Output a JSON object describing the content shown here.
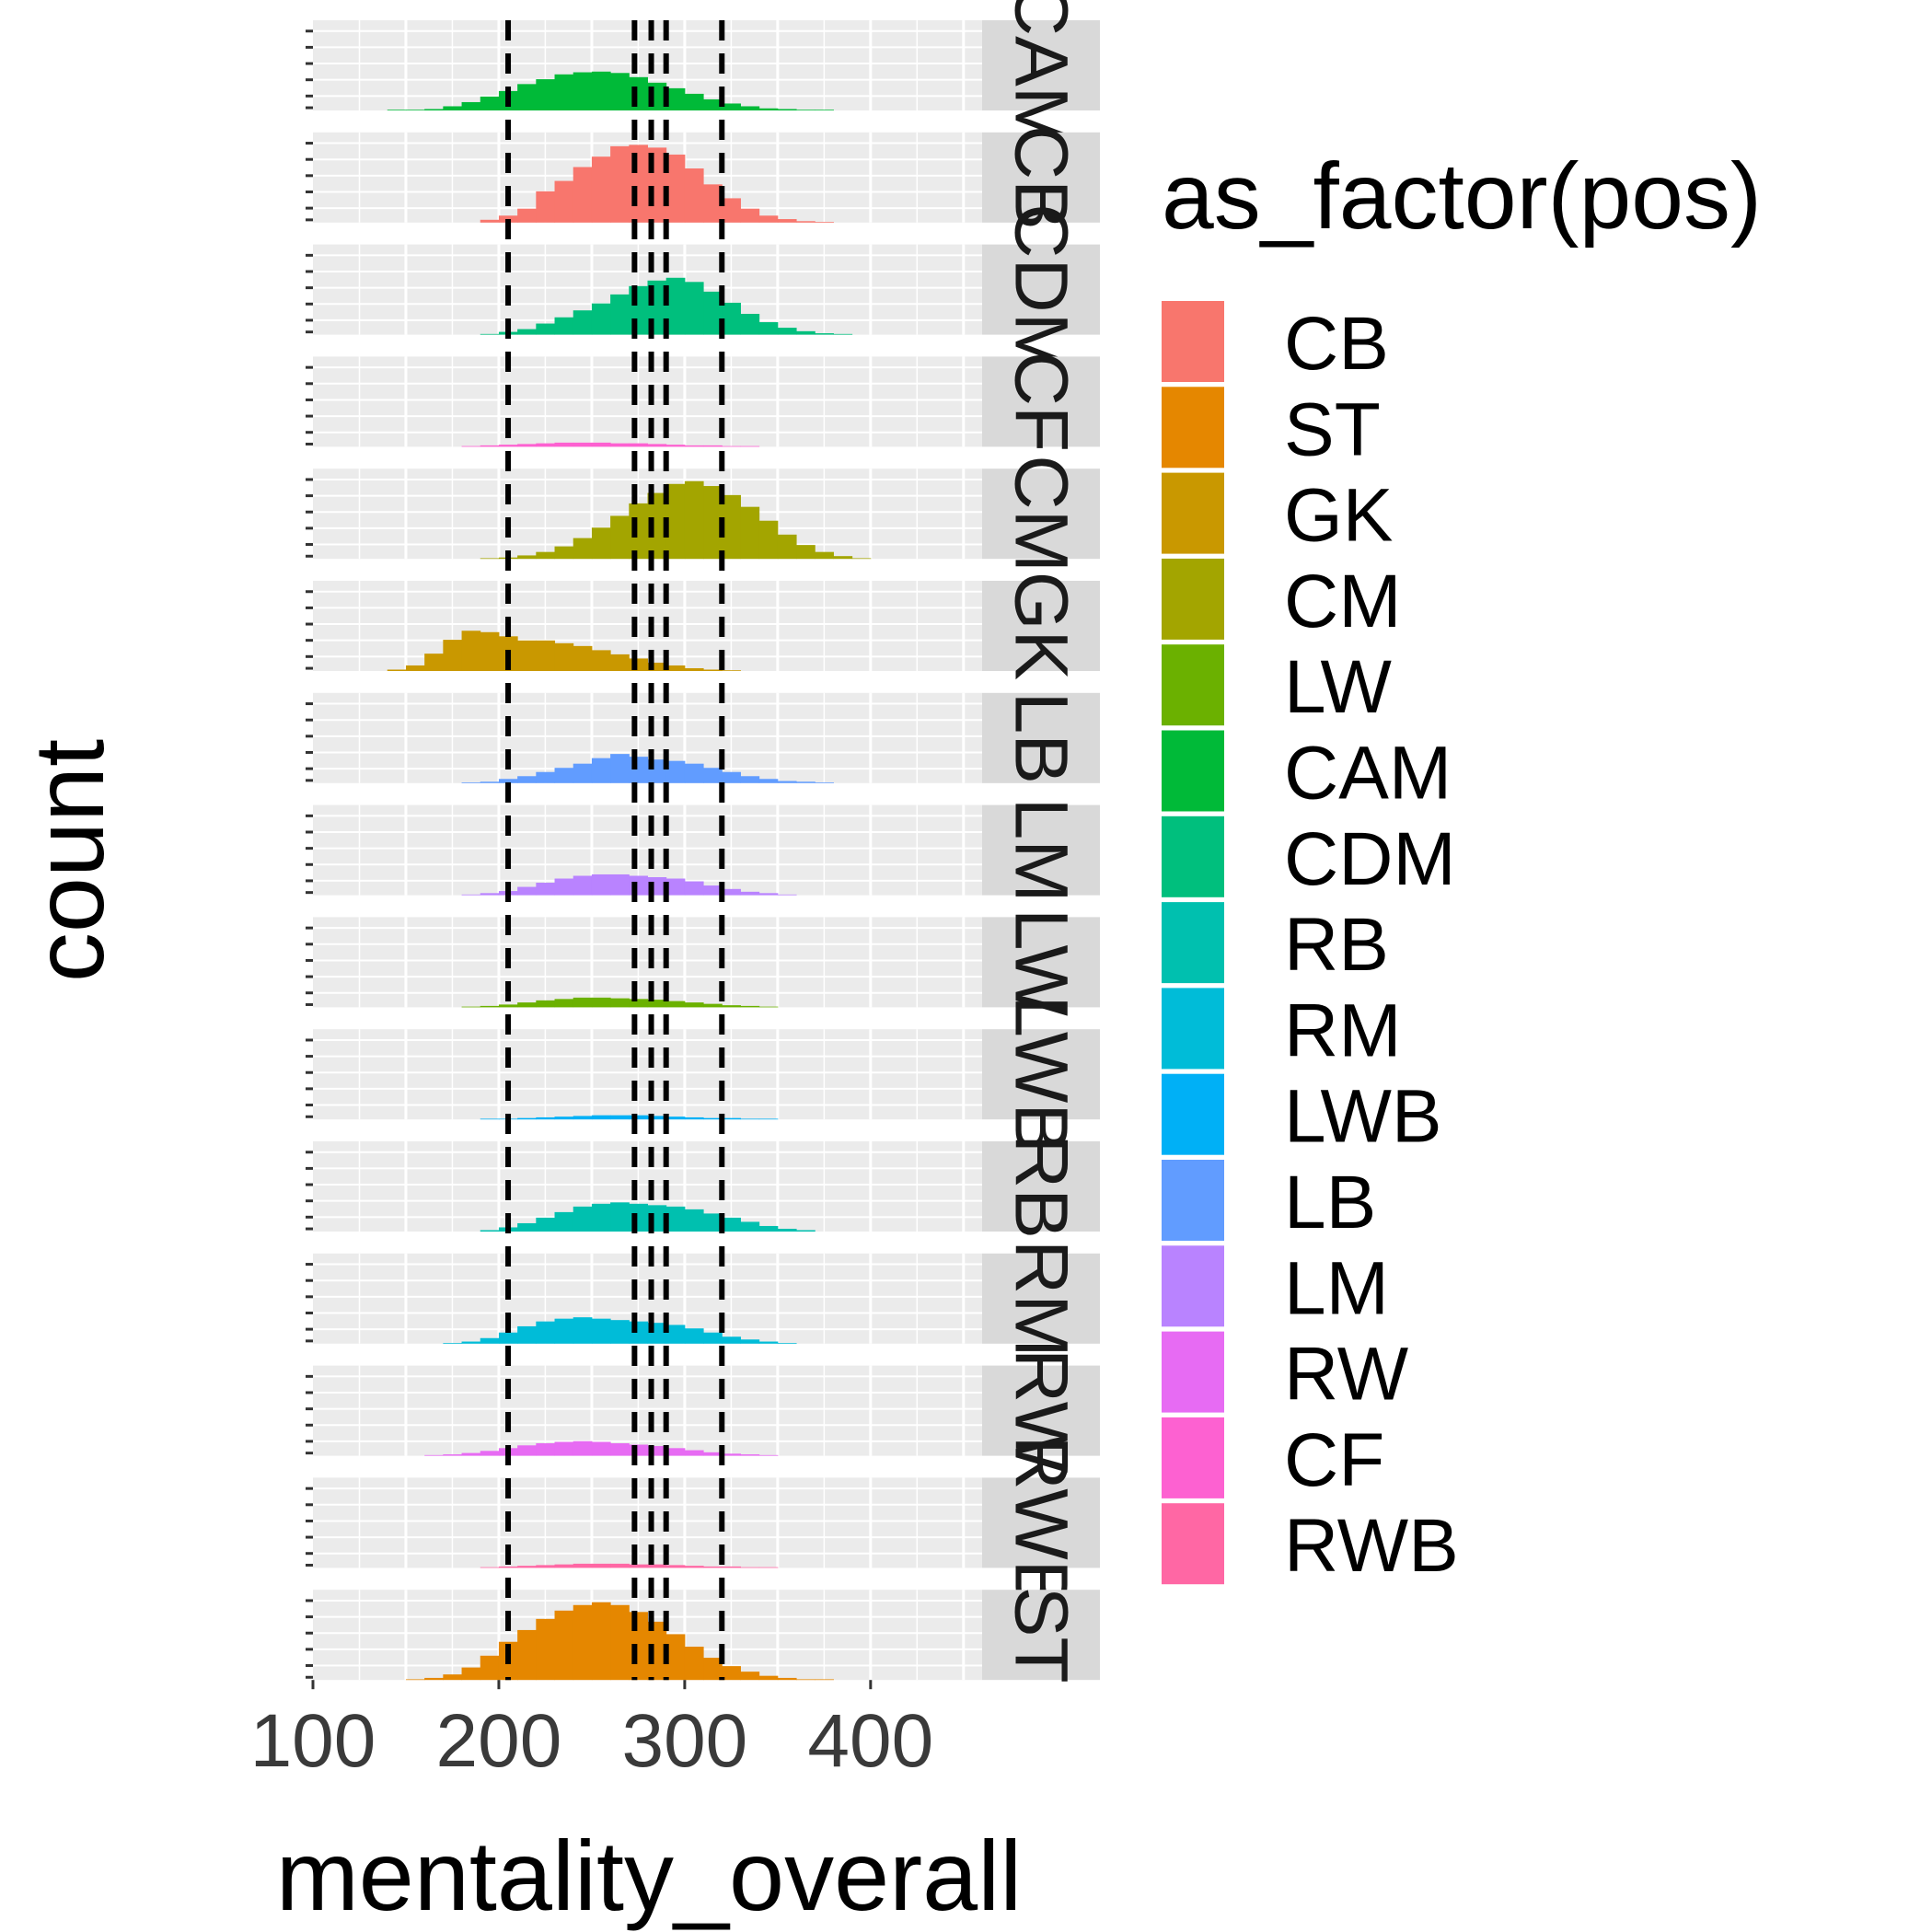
{
  "chart_data": {
    "type": "bar",
    "subtype": "faceted-histogram",
    "xlabel": "mentality_overall",
    "ylabel": "count",
    "x_ticks": [
      100,
      200,
      300,
      400
    ],
    "xlim": [
      100,
      460
    ],
    "ylim": [
      0,
      130
    ],
    "grid": true,
    "legend": {
      "title": "as_factor(pos)",
      "position": "right",
      "entries": [
        "CB",
        "ST",
        "GK",
        "CM",
        "LW",
        "CAM",
        "CDM",
        "RB",
        "RM",
        "LWB",
        "LB",
        "LM",
        "RW",
        "CF",
        "RWB"
      ]
    },
    "colors": {
      "CB": "#F8766D",
      "ST": "#E58700",
      "GK": "#C99800",
      "CM": "#A3A500",
      "LW": "#6BB100",
      "CAM": "#00BA38",
      "CDM": "#00BF7D",
      "RB": "#00C0AF",
      "RM": "#00BCD8",
      "LWB": "#00B0F6",
      "LB": "#619CFF",
      "LM": "#B983FF",
      "RW": "#E76BF3",
      "CF": "#FD61D1",
      "RWB": "#FF67A4"
    },
    "reference_lines_x": [
      205,
      273,
      282,
      290,
      320
    ],
    "bin_start": 140,
    "bin_width": 10,
    "facets": [
      {
        "label": "CAM",
        "pos": "CAM",
        "counts": [
          1,
          1,
          2,
          6,
          12,
          20,
          28,
          38,
          45,
          52,
          55,
          56,
          54,
          48,
          40,
          32,
          24,
          16,
          10,
          6,
          3,
          2,
          1,
          1,
          0,
          0
        ]
      },
      {
        "label": "CB",
        "pos": "CB",
        "counts": [
          0,
          0,
          0,
          0,
          0,
          4,
          10,
          20,
          45,
          60,
          80,
          95,
          110,
          112,
          108,
          98,
          78,
          55,
          35,
          20,
          10,
          5,
          2,
          1,
          0,
          0
        ]
      },
      {
        "label": "CDM",
        "pos": "CDM",
        "counts": [
          0,
          0,
          0,
          0,
          0,
          1,
          4,
          8,
          16,
          25,
          35,
          45,
          58,
          70,
          78,
          82,
          76,
          62,
          46,
          30,
          18,
          10,
          5,
          2,
          1,
          0
        ]
      },
      {
        "label": "CF",
        "pos": "CF",
        "counts": [
          0,
          0,
          0,
          0,
          1,
          2,
          3,
          4,
          5,
          6,
          6,
          6,
          5,
          5,
          4,
          3,
          2,
          2,
          1,
          1,
          0,
          0,
          0,
          0,
          0,
          0
        ]
      },
      {
        "label": "CM",
        "pos": "CM",
        "counts": [
          0,
          0,
          0,
          0,
          0,
          1,
          2,
          5,
          10,
          18,
          30,
          45,
          62,
          80,
          95,
          108,
          112,
          105,
          92,
          75,
          55,
          35,
          20,
          10,
          4,
          1
        ]
      },
      {
        "label": "GK",
        "pos": "GK",
        "counts": [
          2,
          8,
          25,
          45,
          58,
          56,
          50,
          44,
          44,
          40,
          36,
          30,
          24,
          18,
          12,
          8,
          4,
          2,
          1,
          0,
          0,
          0,
          0,
          0,
          0,
          0
        ]
      },
      {
        "label": "LB",
        "pos": "LB",
        "counts": [
          0,
          0,
          0,
          0,
          1,
          2,
          6,
          10,
          16,
          22,
          28,
          36,
          42,
          38,
          34,
          32,
          28,
          22,
          16,
          10,
          6,
          3,
          2,
          1,
          0,
          0
        ]
      },
      {
        "label": "LM",
        "pos": "LM",
        "counts": [
          0,
          0,
          0,
          0,
          1,
          3,
          6,
          12,
          18,
          24,
          28,
          30,
          30,
          28,
          26,
          24,
          20,
          14,
          9,
          5,
          3,
          1,
          0,
          0,
          0,
          0
        ]
      },
      {
        "label": "LW",
        "pos": "LW",
        "counts": [
          0,
          0,
          0,
          0,
          1,
          2,
          4,
          7,
          10,
          12,
          14,
          14,
          13,
          12,
          11,
          9,
          7,
          5,
          3,
          2,
          1,
          0,
          0,
          0,
          0,
          0
        ]
      },
      {
        "label": "LWB",
        "pos": "LWB",
        "counts": [
          0,
          0,
          0,
          0,
          0,
          1,
          1,
          2,
          3,
          4,
          5,
          6,
          6,
          6,
          5,
          4,
          3,
          2,
          2,
          1,
          1,
          0,
          0,
          0,
          0,
          0
        ]
      },
      {
        "label": "RB",
        "pos": "RB",
        "counts": [
          0,
          0,
          0,
          0,
          0,
          2,
          6,
          12,
          20,
          28,
          36,
          40,
          42,
          40,
          38,
          36,
          32,
          26,
          20,
          14,
          8,
          4,
          2,
          0,
          0,
          0
        ]
      },
      {
        "label": "RM",
        "pos": "RM",
        "counts": [
          0,
          0,
          0,
          1,
          3,
          8,
          16,
          25,
          32,
          36,
          38,
          36,
          34,
          32,
          30,
          27,
          22,
          16,
          10,
          6,
          3,
          1,
          0,
          0,
          0,
          0
        ]
      },
      {
        "label": "RW",
        "pos": "RW",
        "counts": [
          0,
          0,
          1,
          2,
          4,
          7,
          11,
          15,
          18,
          20,
          21,
          20,
          18,
          16,
          14,
          11,
          8,
          5,
          3,
          2,
          1,
          0,
          0,
          0,
          0,
          0
        ]
      },
      {
        "label": "RWB",
        "pos": "RWB",
        "counts": [
          0,
          0,
          0,
          0,
          0,
          1,
          2,
          3,
          4,
          5,
          6,
          6,
          6,
          5,
          5,
          4,
          3,
          2,
          2,
          1,
          1,
          0,
          0,
          0,
          0,
          0
        ]
      },
      {
        "label": "ST",
        "pos": "ST",
        "counts": [
          0,
          1,
          3,
          8,
          18,
          35,
          55,
          72,
          88,
          100,
          108,
          112,
          108,
          98,
          84,
          66,
          48,
          32,
          20,
          12,
          6,
          3,
          1,
          1,
          0,
          0
        ]
      }
    ]
  }
}
